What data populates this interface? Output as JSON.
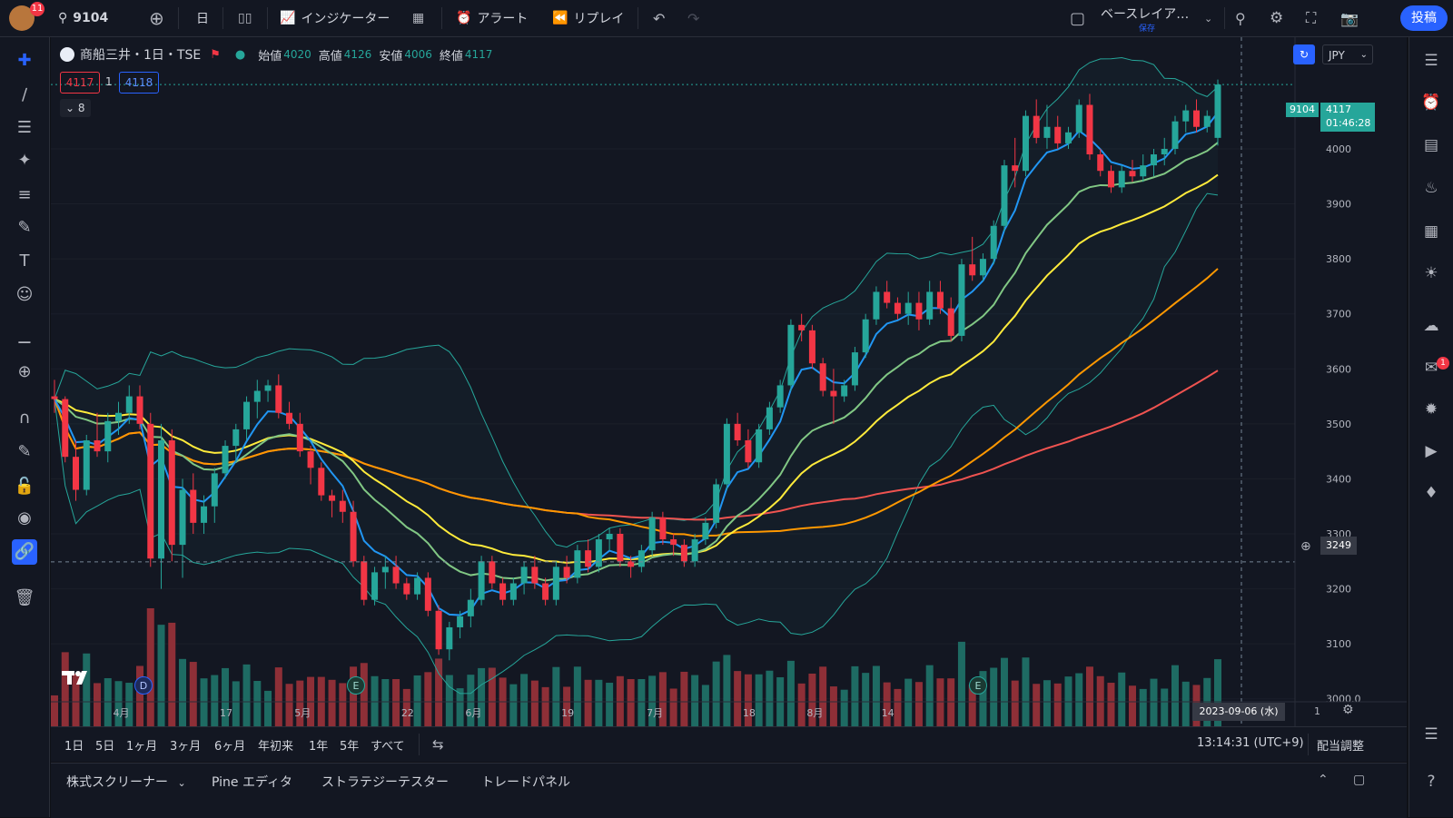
{
  "notifications": "11",
  "toolbar": {
    "symbol": "9104",
    "interval": "日",
    "indicators": "インジケーター",
    "alert": "アラート",
    "replay": "リプレイ",
    "layout_name": "ベースレイア…",
    "layout_status": "保存",
    "post": "投稿"
  },
  "legend": {
    "symbol_title": "商船三井・1日・TSE",
    "open_label": "始値",
    "open": "4020",
    "high_label": "高値",
    "high": "4126",
    "low_label": "安値",
    "low": "4006",
    "close_label": "終値",
    "close": "4117",
    "bid": "4117",
    "spread": "1",
    "ask": "4118",
    "collapse_count": "8"
  },
  "currency": "JPY",
  "last_price": {
    "symbol": "9104",
    "price": "4117",
    "countdown": "01:46:28"
  },
  "crosshair": {
    "price": "3249",
    "date": "2023-09-06 (水)"
  },
  "axis": {
    "price_ticks": [
      "4000",
      "3900",
      "3800",
      "3700",
      "3600",
      "3500",
      "3400",
      "3300",
      "3200",
      "3100",
      "3000.0"
    ],
    "date_ticks": [
      "4月",
      "17",
      "5月",
      "22",
      "6月",
      "19",
      "7月",
      "18",
      "8月",
      "14"
    ],
    "page_num": "1"
  },
  "bottom": {
    "ranges": [
      "1日",
      "5日",
      "1ヶ月",
      "3ヶ月",
      "6ヶ月",
      "年初来",
      "1年",
      "5年",
      "すべて"
    ],
    "time": "13:14:31 (UTC+9)",
    "adjust": "配当調整"
  },
  "panel": {
    "screener": "株式スクリーナー",
    "pine": "Pine エディタ",
    "strategy": "ストラテジーテスター",
    "trade": "トレードパネル"
  },
  "events": {
    "dividend": "D",
    "earnings": "E"
  },
  "colors": {
    "up": "#26a69a",
    "down": "#f23645",
    "ema_fast": "#2196f3",
    "ema_mid": "#81c784",
    "ema_slow": "#ffeb3b",
    "ma_orange": "#ff9800",
    "ma_red": "#ef5350",
    "band": "#26a69a",
    "vol_up": "#1e6b63",
    "vol_down": "#8e2f37",
    "accent": "#2962ff"
  },
  "chart_data": {
    "type": "candlestick",
    "y_range": [
      2950,
      4170
    ],
    "series": [
      {
        "name": "candles_ohlc",
        "values": [
          [
            3550,
            3580,
            3520,
            3545
          ],
          [
            3545,
            3550,
            3430,
            3440
          ],
          [
            3440,
            3470,
            3360,
            3380
          ],
          [
            3380,
            3480,
            3370,
            3470
          ],
          [
            3470,
            3520,
            3440,
            3450
          ],
          [
            3450,
            3520,
            3430,
            3505
          ],
          [
            3505,
            3540,
            3480,
            3520
          ],
          [
            3520,
            3570,
            3500,
            3550
          ],
          [
            3550,
            3570,
            3490,
            3500
          ],
          [
            3500,
            3520,
            3240,
            3255
          ],
          [
            3255,
            3500,
            3200,
            3470
          ],
          [
            3470,
            3490,
            3250,
            3280
          ],
          [
            3280,
            3400,
            3220,
            3380
          ],
          [
            3380,
            3410,
            3300,
            3320
          ],
          [
            3320,
            3370,
            3300,
            3350
          ],
          [
            3350,
            3420,
            3320,
            3410
          ],
          [
            3410,
            3470,
            3400,
            3460
          ],
          [
            3460,
            3500,
            3430,
            3490
          ],
          [
            3490,
            3550,
            3470,
            3540
          ],
          [
            3540,
            3580,
            3510,
            3560
          ],
          [
            3560,
            3580,
            3540,
            3570
          ],
          [
            3570,
            3590,
            3510,
            3520
          ],
          [
            3520,
            3540,
            3490,
            3500
          ],
          [
            3500,
            3520,
            3440,
            3450
          ],
          [
            3450,
            3460,
            3390,
            3420
          ],
          [
            3420,
            3430,
            3360,
            3370
          ],
          [
            3370,
            3380,
            3330,
            3360
          ],
          [
            3360,
            3380,
            3320,
            3340
          ],
          [
            3340,
            3360,
            3240,
            3250
          ],
          [
            3250,
            3260,
            3170,
            3180
          ],
          [
            3180,
            3240,
            3170,
            3230
          ],
          [
            3230,
            3260,
            3200,
            3240
          ],
          [
            3240,
            3260,
            3200,
            3210
          ],
          [
            3210,
            3220,
            3180,
            3190
          ],
          [
            3190,
            3230,
            3180,
            3220
          ],
          [
            3220,
            3230,
            3150,
            3160
          ],
          [
            3160,
            3170,
            3080,
            3090
          ],
          [
            3090,
            3140,
            3070,
            3130
          ],
          [
            3130,
            3160,
            3110,
            3150
          ],
          [
            3150,
            3200,
            3130,
            3180
          ],
          [
            3180,
            3260,
            3170,
            3250
          ],
          [
            3250,
            3260,
            3200,
            3210
          ],
          [
            3210,
            3220,
            3170,
            3180
          ],
          [
            3180,
            3220,
            3170,
            3210
          ],
          [
            3210,
            3250,
            3190,
            3240
          ],
          [
            3240,
            3260,
            3200,
            3210
          ],
          [
            3210,
            3220,
            3170,
            3180
          ],
          [
            3180,
            3250,
            3170,
            3240
          ],
          [
            3240,
            3260,
            3210,
            3220
          ],
          [
            3220,
            3280,
            3210,
            3270
          ],
          [
            3270,
            3290,
            3230,
            3240
          ],
          [
            3240,
            3300,
            3230,
            3290
          ],
          [
            3290,
            3310,
            3270,
            3300
          ],
          [
            3300,
            3310,
            3240,
            3250
          ],
          [
            3250,
            3260,
            3220,
            3240
          ],
          [
            3240,
            3280,
            3230,
            3270
          ],
          [
            3270,
            3340,
            3260,
            3330
          ],
          [
            3330,
            3340,
            3280,
            3290
          ],
          [
            3290,
            3300,
            3260,
            3280
          ],
          [
            3280,
            3290,
            3240,
            3250
          ],
          [
            3250,
            3300,
            3240,
            3290
          ],
          [
            3290,
            3330,
            3280,
            3320
          ],
          [
            3320,
            3400,
            3310,
            3390
          ],
          [
            3390,
            3510,
            3380,
            3500
          ],
          [
            3500,
            3520,
            3460,
            3470
          ],
          [
            3470,
            3490,
            3420,
            3430
          ],
          [
            3430,
            3500,
            3420,
            3490
          ],
          [
            3490,
            3540,
            3480,
            3530
          ],
          [
            3530,
            3580,
            3520,
            3570
          ],
          [
            3570,
            3690,
            3560,
            3680
          ],
          [
            3680,
            3700,
            3650,
            3670
          ],
          [
            3670,
            3680,
            3600,
            3610
          ],
          [
            3610,
            3620,
            3550,
            3560
          ],
          [
            3560,
            3600,
            3500,
            3550
          ],
          [
            3550,
            3580,
            3540,
            3570
          ],
          [
            3570,
            3640,
            3560,
            3630
          ],
          [
            3630,
            3700,
            3620,
            3690
          ],
          [
            3690,
            3750,
            3680,
            3740
          ],
          [
            3740,
            3760,
            3710,
            3720
          ],
          [
            3720,
            3730,
            3690,
            3700
          ],
          [
            3700,
            3740,
            3680,
            3720
          ],
          [
            3720,
            3740,
            3670,
            3690
          ],
          [
            3690,
            3760,
            3680,
            3740
          ],
          [
            3740,
            3760,
            3700,
            3710
          ],
          [
            3710,
            3730,
            3650,
            3660
          ],
          [
            3660,
            3800,
            3650,
            3790
          ],
          [
            3790,
            3840,
            3760,
            3770
          ],
          [
            3770,
            3810,
            3760,
            3800
          ],
          [
            3800,
            3870,
            3790,
            3860
          ],
          [
            3860,
            3980,
            3850,
            3970
          ],
          [
            3970,
            4020,
            3930,
            3960
          ],
          [
            3960,
            4070,
            3950,
            4060
          ],
          [
            4060,
            4090,
            4010,
            4020
          ],
          [
            4020,
            4080,
            4000,
            4040
          ],
          [
            4040,
            4060,
            4000,
            4010
          ],
          [
            4010,
            4040,
            4000,
            4030
          ],
          [
            4030,
            4090,
            4020,
            4080
          ],
          [
            4080,
            4100,
            3980,
            3990
          ],
          [
            3990,
            4000,
            3950,
            3960
          ],
          [
            3960,
            3970,
            3920,
            3930
          ],
          [
            3930,
            3970,
            3920,
            3960
          ],
          [
            3960,
            3980,
            3940,
            3950
          ],
          [
            3950,
            3990,
            3940,
            3970
          ],
          [
            3970,
            4000,
            3950,
            3990
          ],
          [
            3990,
            4020,
            3970,
            4000
          ],
          [
            4000,
            4060,
            3990,
            4050
          ],
          [
            4050,
            4080,
            4030,
            4070
          ],
          [
            4070,
            4090,
            4030,
            4040
          ],
          [
            4040,
            4070,
            4030,
            4060
          ],
          [
            4020,
            4126,
            4006,
            4117
          ]
        ]
      }
    ]
  }
}
